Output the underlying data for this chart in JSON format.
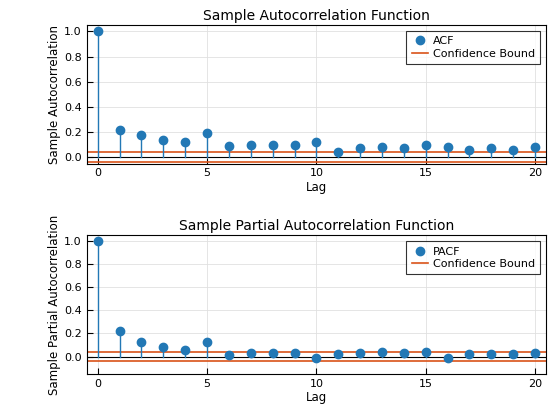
{
  "acf_lags": [
    0,
    1,
    2,
    3,
    4,
    5,
    6,
    7,
    8,
    9,
    10,
    11,
    12,
    13,
    14,
    15,
    16,
    17,
    18,
    19,
    20
  ],
  "acf_values": [
    1.0,
    0.22,
    0.18,
    0.14,
    0.12,
    0.19,
    0.09,
    0.1,
    0.1,
    0.1,
    0.12,
    0.04,
    0.07,
    0.08,
    0.07,
    0.1,
    0.08,
    0.06,
    0.07,
    0.06,
    0.08
  ],
  "pacf_values": [
    1.0,
    0.22,
    0.13,
    0.08,
    0.06,
    0.13,
    0.01,
    0.03,
    0.03,
    0.03,
    -0.01,
    0.02,
    0.03,
    0.04,
    0.03,
    0.04,
    -0.01,
    0.02,
    0.02,
    0.02,
    0.03
  ],
  "confidence_bound": 0.04,
  "stem_color": "#2278b5",
  "conf_color": "#d95319",
  "acf_title": "Sample Autocorrelation Function",
  "pacf_title": "Sample Partial Autocorrelation Function",
  "xlabel": "Lag",
  "acf_ylabel": "Sample Autocorrelation",
  "pacf_ylabel": "Sample Partial Autocorrelation",
  "acf_legend_label": "ACF",
  "pacf_legend_label": "PACF",
  "conf_legend_label": "Confidence Bound",
  "xlim": [
    -0.5,
    20.5
  ],
  "acf_ylim": [
    -0.05,
    1.05
  ],
  "pacf_ylim": [
    -0.15,
    1.05
  ],
  "acf_yticks": [
    0,
    0.2,
    0.4,
    0.6,
    0.8,
    1.0
  ],
  "pacf_yticks": [
    0,
    0.2,
    0.4,
    0.6,
    0.8,
    1.0
  ],
  "xticks": [
    0,
    5,
    10,
    15,
    20
  ],
  "grid_color": "#e0e0e0",
  "title_fontsize": 10,
  "label_fontsize": 8.5,
  "tick_fontsize": 8,
  "legend_fontsize": 8,
  "marker_size": 6,
  "stem_linewidth": 1.0,
  "conf_linewidth": 1.2,
  "baseline_linewidth": 0.8
}
